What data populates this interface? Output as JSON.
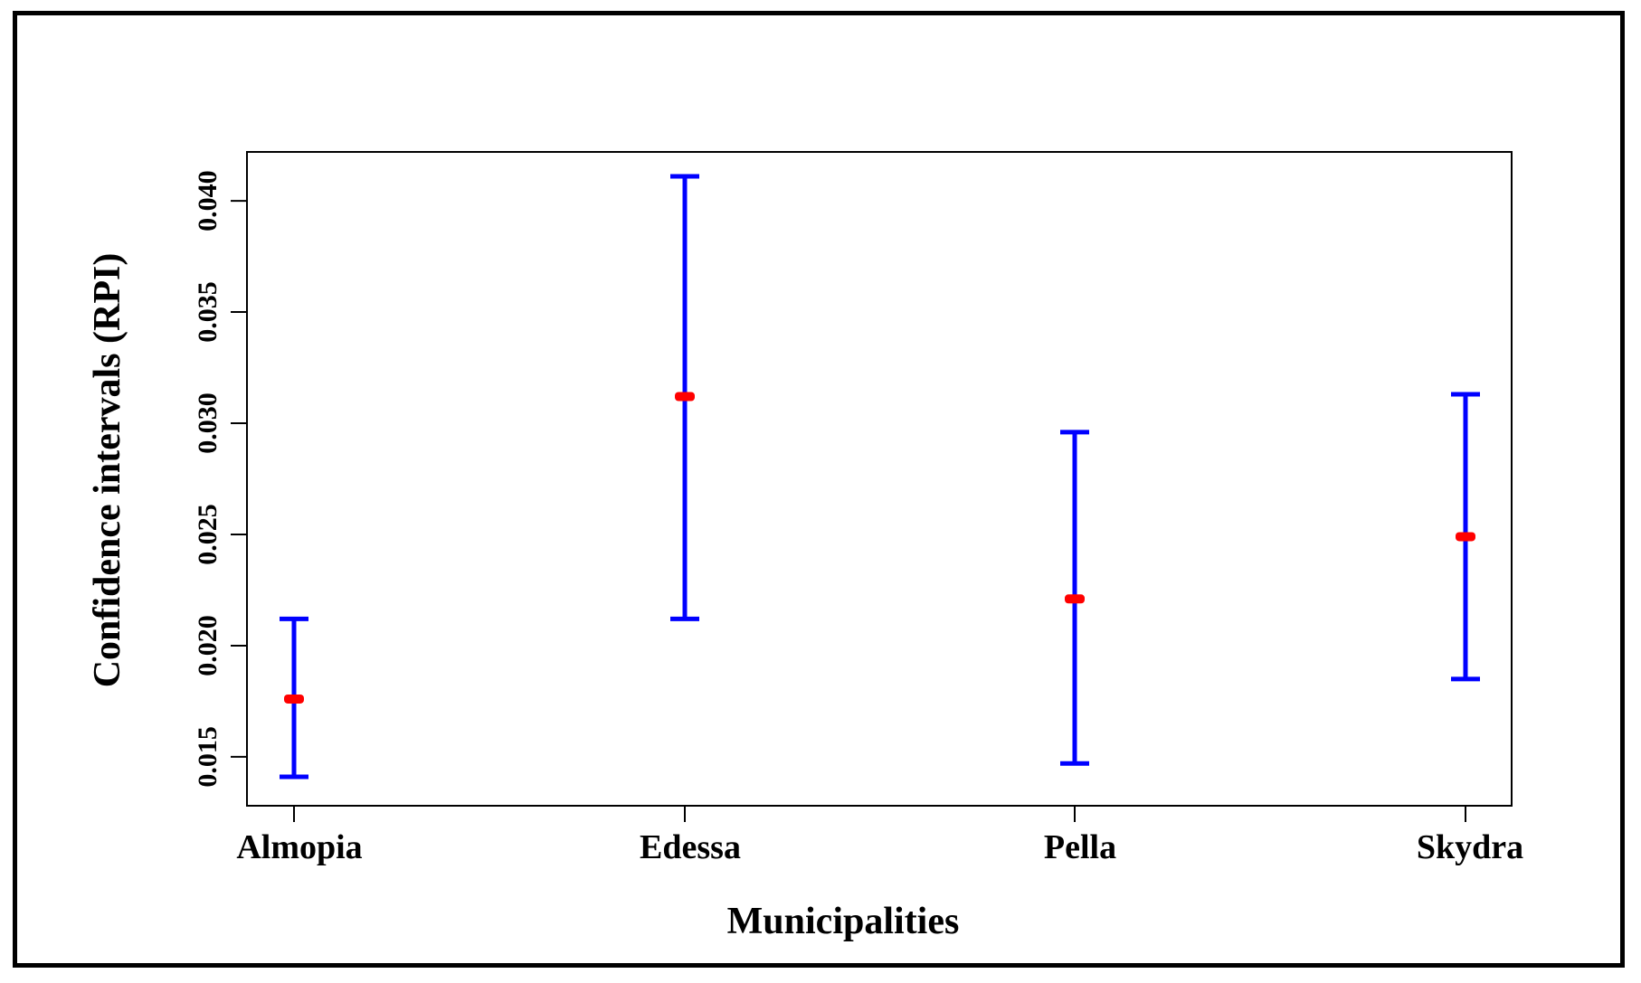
{
  "chart_data": {
    "type": "errorbar",
    "xlabel": "Municipalities",
    "ylabel": "Confidence intervals (RPI)",
    "categories": [
      "Almopia",
      "Edessa",
      "Pella",
      "Skydra"
    ],
    "ylim": [
      0.0128,
      0.0422
    ],
    "yticks": [
      "0.015",
      "0.020",
      "0.025",
      "0.030",
      "0.035",
      "0.040"
    ],
    "series": [
      {
        "mean": [
          0.0176,
          0.0312,
          0.0221,
          0.0249
        ],
        "lower": [
          0.0141,
          0.0212,
          0.0147,
          0.0185
        ],
        "upper": [
          0.0212,
          0.0411,
          0.0296,
          0.0313
        ]
      }
    ],
    "colors": {
      "interval": "#0000ff",
      "mean": "#ff0000"
    },
    "grid": false,
    "legend": "none"
  }
}
